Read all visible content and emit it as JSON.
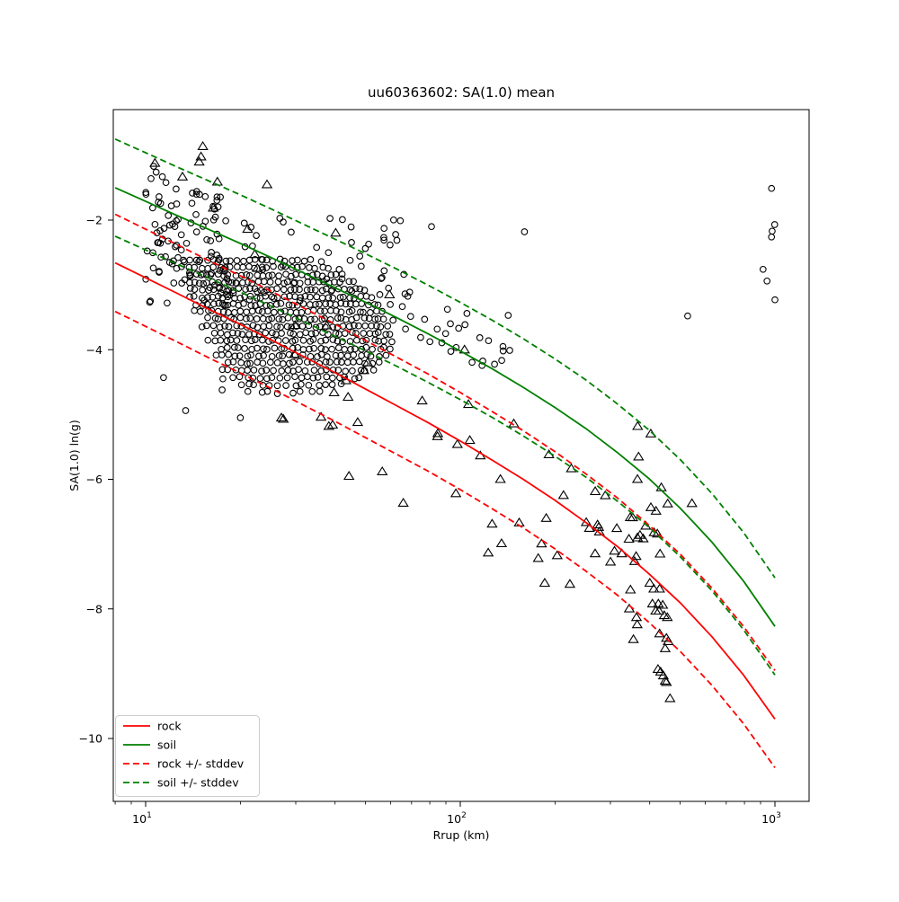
{
  "title": "uu60363602: SA(1.0) mean",
  "axes": {
    "xlabel": "Rrup (km)",
    "ylabel": "SA(1.0) ln(g)",
    "x_scale": "log",
    "x_major_ticks": [
      {
        "value": 10,
        "base": "10",
        "exp": "1"
      },
      {
        "value": 100,
        "base": "10",
        "exp": "2"
      },
      {
        "value": 1000,
        "base": "10",
        "exp": "3"
      }
    ],
    "x_minor_ticks": [
      8,
      9,
      20,
      30,
      40,
      50,
      60,
      70,
      80,
      90,
      200,
      300,
      400,
      500,
      600,
      700,
      800,
      900
    ],
    "y_ticks": [
      {
        "value": -2,
        "label": "−2"
      },
      {
        "value": -4,
        "label": "−4"
      },
      {
        "value": -6,
        "label": "−6"
      },
      {
        "value": -8,
        "label": "−8"
      },
      {
        "value": -10,
        "label": "−10"
      }
    ],
    "x_range": [
      7.9,
      1280
    ],
    "y_range": [
      -10.97,
      -0.3
    ]
  },
  "legend": {
    "entries": [
      {
        "label": "rock",
        "color": "#ff0000",
        "dashed": false
      },
      {
        "label": "soil",
        "color": "#008000",
        "dashed": false
      },
      {
        "label": "rock +/- stddev",
        "color": "#ff0000",
        "dashed": true
      },
      {
        "label": "soil +/- stddev",
        "color": "#008000",
        "dashed": true
      }
    ]
  },
  "chart_data": {
    "type": "scatter",
    "title": "uu60363602: SA(1.0) mean",
    "xlabel": "Rrup (km)",
    "ylabel": "SA(1.0) ln(g)",
    "x_axis": {
      "scale": "log",
      "range": [
        7.9,
        1280
      ]
    },
    "y_axis": {
      "range": [
        -10.97,
        -0.3
      ]
    },
    "sigma": 0.75,
    "colors": {
      "rock": "#ff0000",
      "soil": "#008000",
      "markers": "#000000"
    },
    "curves": [
      {
        "name": "rock",
        "legend": "rock",
        "color": "#ff0000",
        "style": "solid",
        "r": [
          8,
          10,
          12.6,
          15.8,
          20,
          25.1,
          31.6,
          39.8,
          50.1,
          63.1,
          79.4,
          100,
          125.9,
          158.5,
          199.5,
          251.2,
          316.2,
          398.1,
          501.2,
          631,
          794.3,
          1000
        ],
        "v": [
          -2.66,
          -2.89,
          -3.13,
          -3.37,
          -3.61,
          -3.85,
          -4.1,
          -4.35,
          -4.61,
          -4.87,
          -5.13,
          -5.41,
          -5.7,
          -6.0,
          -6.32,
          -6.67,
          -7.04,
          -7.46,
          -7.91,
          -8.43,
          -9.02,
          -9.7
        ]
      },
      {
        "name": "soil",
        "legend": "soil",
        "color": "#008000",
        "style": "solid",
        "r": [
          8,
          10,
          12.6,
          15.8,
          20,
          25.1,
          31.6,
          39.8,
          50.1,
          63.1,
          79.4,
          100,
          125.9,
          158.5,
          199.5,
          251.2,
          316.2,
          398.1,
          501.2,
          631,
          794.3,
          1000
        ],
        "v": [
          -1.5,
          -1.71,
          -1.93,
          -2.14,
          -2.36,
          -2.58,
          -2.81,
          -3.04,
          -3.27,
          -3.51,
          -3.76,
          -4.02,
          -4.29,
          -4.58,
          -4.89,
          -5.22,
          -5.59,
          -5.99,
          -6.45,
          -6.97,
          -7.57,
          -8.27
        ]
      }
    ],
    "stddev_bands": [
      {
        "base": "rock",
        "legend": "rock +/- stddev",
        "color": "#ff0000",
        "style": "dashed",
        "offsets": [
          0.75,
          -0.75
        ]
      },
      {
        "base": "soil",
        "legend": "soil +/- stddev",
        "color": "#008000",
        "style": "dashed",
        "offsets": [
          0.75,
          -0.75
        ]
      }
    ],
    "scatter": {
      "seed": 11,
      "circle_marker": "unfilled black circle",
      "triangle_marker": "unfilled black triangle",
      "circles": {
        "explicit": [
          [
            10.6,
            -1.17
          ],
          [
            10.8,
            -1.26
          ],
          [
            10.4,
            -1.36
          ],
          [
            11.3,
            -1.33
          ],
          [
            11.6,
            -1.42
          ],
          [
            12.5,
            -1.52
          ],
          [
            14.5,
            -1.6
          ],
          [
            11.4,
            -4.43
          ],
          [
            17.6,
            -4.45
          ],
          [
            17.5,
            -4.62
          ],
          [
            13.4,
            -4.94
          ],
          [
            20,
            -5.05
          ],
          [
            81,
            -2.1
          ],
          [
            160,
            -2.18
          ],
          [
            142,
            -3.47
          ],
          [
            105,
            -3.44
          ],
          [
            77,
            -3.53
          ],
          [
            93,
            -3.6
          ],
          [
            528,
            -3.48
          ],
          [
            917,
            -2.76
          ],
          [
            944,
            -2.94
          ],
          [
            975,
            -1.51
          ],
          [
            998,
            -2.07
          ],
          [
            980,
            -2.17
          ],
          [
            975,
            -2.26
          ],
          [
            1000,
            -3.23
          ]
        ],
        "rows": [
          [
            -2.62,
            1.12,
            1.52,
            22
          ],
          [
            -2.73,
            1.1,
            1.58,
            26
          ],
          [
            -2.85,
            1.14,
            1.62,
            28
          ],
          [
            -2.96,
            1.12,
            1.66,
            30
          ],
          [
            -3.07,
            1.16,
            1.7,
            32
          ],
          [
            -3.19,
            1.14,
            1.72,
            34
          ],
          [
            -3.3,
            1.18,
            1.74,
            34
          ],
          [
            -3.41,
            1.16,
            1.75,
            34
          ],
          [
            -3.52,
            1.2,
            1.76,
            34
          ],
          [
            -3.64,
            1.18,
            1.77,
            34
          ],
          [
            -3.75,
            1.22,
            1.78,
            32
          ],
          [
            -3.86,
            1.2,
            1.78,
            32
          ],
          [
            -3.98,
            1.24,
            1.78,
            30
          ],
          [
            -4.09,
            1.22,
            1.76,
            28
          ],
          [
            -4.2,
            1.26,
            1.74,
            26
          ],
          [
            -4.32,
            1.24,
            1.72,
            24
          ],
          [
            -4.43,
            1.28,
            1.68,
            20
          ],
          [
            -4.54,
            1.3,
            1.62,
            14
          ],
          [
            -4.66,
            1.33,
            1.56,
            8
          ]
        ],
        "groups": [
          {
            "n": 55,
            "lr": [
              1.0,
              1.24
            ],
            "v": [
              -1.55,
              -2.6
            ]
          },
          {
            "n": 40,
            "lr": [
              1.0,
              1.27
            ],
            "v": [
              -2.5,
              -3.35
            ]
          },
          {
            "n": 50,
            "lr": [
              1.25,
              1.84
            ],
            "v": [
              -1.95,
              -3.25
            ]
          },
          {
            "n": 30,
            "lr": [
              1.74,
              2.16
            ],
            "curve": "soil",
            "off": [
              -0.15,
              0.55
            ]
          }
        ]
      },
      "triangles": {
        "explicit": [
          [
            15.2,
            -0.86
          ],
          [
            15.0,
            -1.02
          ],
          [
            14.8,
            -1.1
          ],
          [
            10.7,
            -1.12
          ],
          [
            13.1,
            -1.33
          ],
          [
            16.9,
            -1.41
          ],
          [
            24.3,
            -1.45
          ],
          [
            16.4,
            -1.81
          ],
          [
            59.6,
            -3.15
          ],
          [
            289,
            -6.25
          ],
          [
            545,
            -6.37
          ],
          [
            27.4,
            -5.07
          ],
          [
            39.7,
            -4.66
          ],
          [
            44,
            -4.73
          ],
          [
            39.3,
            -5.16
          ],
          [
            47.2,
            -5.12
          ],
          [
            44.3,
            -5.95
          ],
          [
            56.5,
            -5.88
          ]
        ],
        "explicit_streak": [
          [
            412,
            -7.69
          ],
          [
            430,
            -7.69
          ],
          [
            408,
            -7.92
          ],
          [
            426,
            -7.92
          ],
          [
            440,
            -7.94
          ],
          [
            418,
            -8.03
          ],
          [
            428,
            -8.03
          ],
          [
            363,
            -8.13
          ],
          [
            445,
            -8.1
          ],
          [
            455,
            -8.13
          ],
          [
            365,
            -8.24
          ],
          [
            430,
            -8.38
          ],
          [
            452,
            -8.45
          ],
          [
            458,
            -8.5
          ],
          [
            355,
            -8.47
          ],
          [
            448,
            -8.61
          ],
          [
            425,
            -8.93
          ],
          [
            433,
            -8.97
          ],
          [
            442,
            -9.03
          ],
          [
            448,
            -9.11
          ],
          [
            452,
            -9.13
          ],
          [
            464,
            -9.38
          ]
        ],
        "groups": [
          {
            "n": 4,
            "lr": [
              1.25,
              1.62
            ],
            "v": [
              -1.9,
              -2.8
            ]
          },
          {
            "n": 34,
            "lr": [
              1.4,
              2.36
            ],
            "curve": "rock",
            "gauss": [
              -0.15,
              0.7
            ],
            "clip": [
              -1.6,
              1.45
            ]
          },
          {
            "n": 20,
            "lr": [
              2.38,
              2.63
            ],
            "curve": "rock",
            "gauss": [
              0.1,
              0.45
            ],
            "clip": [
              -0.8,
              1.0
            ]
          },
          {
            "n": 14,
            "lr": [
              2.56,
              2.67
            ],
            "curve": "rock",
            "off": [
              0.2,
              2.2
            ]
          }
        ]
      }
    }
  }
}
